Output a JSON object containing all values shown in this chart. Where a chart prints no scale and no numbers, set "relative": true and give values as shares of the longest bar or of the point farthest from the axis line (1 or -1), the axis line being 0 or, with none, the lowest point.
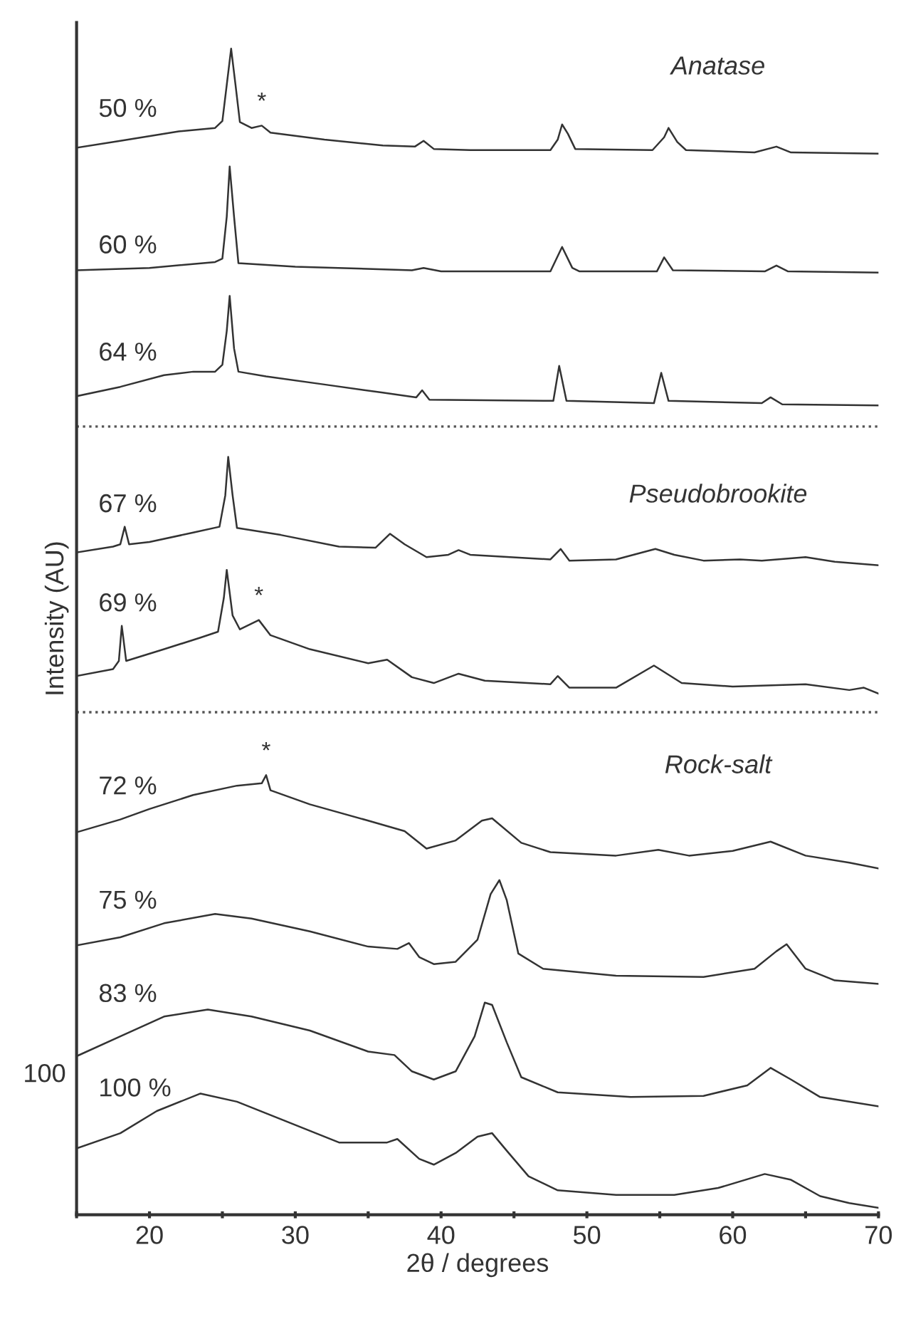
{
  "chart_data": {
    "type": "line",
    "relative": true,
    "xlabel": "2θ / degrees",
    "ylabel": "Intensity (AU)",
    "xlim": [
      15,
      70
    ],
    "xticks": [
      {
        "value": 15,
        "label": null
      },
      20,
      {
        "value": 25,
        "label": null
      },
      30,
      {
        "value": 35,
        "label": null
      },
      40,
      {
        "value": 45,
        "label": null
      },
      50,
      {
        "value": 55,
        "label": null
      },
      60,
      {
        "value": 65,
        "label": null
      },
      70
    ],
    "legend": false,
    "grid": false,
    "marker": "none",
    "line_style": "solid",
    "series": [
      {
        "name": "50 %",
        "color": "#333333",
        "x": [
          15,
          18,
          22,
          24.5,
          25.0,
          25.3,
          25.6,
          25.9,
          26.2,
          27,
          27.7,
          28.3,
          32,
          36,
          38.2,
          38.8,
          39.5,
          42,
          47.5,
          48.0,
          48.3,
          48.7,
          49.2,
          54.5,
          55.3,
          55.6,
          56.2,
          56.8,
          61.5,
          63,
          64,
          70
        ],
        "values": [
          0.915,
          0.921,
          0.929,
          0.932,
          0.938,
          0.969,
          1.0,
          0.969,
          0.937,
          0.932,
          0.934,
          0.928,
          0.922,
          0.917,
          0.916,
          0.921,
          0.914,
          0.913,
          0.913,
          0.922,
          0.935,
          0.927,
          0.914,
          0.913,
          0.924,
          0.932,
          0.92,
          0.913,
          0.911,
          0.916,
          0.911,
          0.91
        ]
      },
      {
        "name": "60 %",
        "color": "#333333",
        "x": [
          15,
          20,
          24.5,
          25.0,
          25.3,
          25.5,
          25.8,
          26.1,
          30,
          38,
          38.8,
          40,
          47.5,
          48.3,
          49,
          49.5,
          54.8,
          55.3,
          55.9,
          62.2,
          63,
          63.8,
          70
        ],
        "values": [
          0.81,
          0.812,
          0.817,
          0.82,
          0.856,
          0.899,
          0.856,
          0.816,
          0.813,
          0.81,
          0.812,
          0.809,
          0.809,
          0.83,
          0.812,
          0.809,
          0.809,
          0.821,
          0.81,
          0.809,
          0.814,
          0.809,
          0.808
        ]
      },
      {
        "name": "64 %",
        "color": "#333333",
        "x": [
          15,
          18,
          21,
          23,
          24.5,
          25.0,
          25.3,
          25.5,
          25.8,
          26.1,
          28,
          32,
          36,
          38.3,
          38.7,
          39.2,
          47.7,
          48.1,
          48.6,
          54.6,
          55.1,
          55.6,
          62,
          62.6,
          63.4,
          70
        ],
        "values": [
          0.702,
          0.71,
          0.72,
          0.723,
          0.723,
          0.729,
          0.758,
          0.788,
          0.743,
          0.723,
          0.719,
          0.712,
          0.705,
          0.701,
          0.707,
          0.699,
          0.698,
          0.728,
          0.698,
          0.696,
          0.722,
          0.698,
          0.696,
          0.701,
          0.695,
          0.694
        ]
      },
      {
        "name": "67 %",
        "color": "#333333",
        "x": [
          15,
          17.5,
          18.0,
          18.3,
          18.6,
          20,
          23,
          24.8,
          25.2,
          25.4,
          25.7,
          26.0,
          29,
          33,
          35.5,
          36.5,
          37.5,
          39,
          40.5,
          41.2,
          42,
          47.5,
          48.2,
          48.8,
          52,
          54.7,
          56,
          58,
          60.5,
          62,
          65,
          67,
          70
        ],
        "values": [
          0.568,
          0.573,
          0.575,
          0.59,
          0.575,
          0.577,
          0.585,
          0.59,
          0.617,
          0.65,
          0.617,
          0.589,
          0.583,
          0.573,
          0.572,
          0.584,
          0.575,
          0.564,
          0.566,
          0.57,
          0.566,
          0.562,
          0.571,
          0.561,
          0.562,
          0.571,
          0.566,
          0.561,
          0.562,
          0.561,
          0.564,
          0.56,
          0.557
        ]
      },
      {
        "name": "69 %",
        "color": "#333333",
        "x": [
          15,
          17.5,
          17.9,
          18.1,
          18.4,
          21,
          23.5,
          24.7,
          25.1,
          25.3,
          25.7,
          26.2,
          27.5,
          28.3,
          31,
          35,
          36.3,
          38,
          39.5,
          41.2,
          43,
          47.5,
          48,
          48.8,
          52,
          54.6,
          56.5,
          60,
          65,
          68,
          69,
          70
        ],
        "values": [
          0.462,
          0.468,
          0.475,
          0.505,
          0.475,
          0.485,
          0.495,
          0.5,
          0.529,
          0.553,
          0.514,
          0.502,
          0.51,
          0.497,
          0.485,
          0.473,
          0.476,
          0.461,
          0.456,
          0.464,
          0.458,
          0.455,
          0.462,
          0.452,
          0.452,
          0.471,
          0.456,
          0.453,
          0.455,
          0.45,
          0.452,
          0.447
        ]
      },
      {
        "name": "72 %",
        "color": "#333333",
        "x": [
          15,
          18,
          20,
          23,
          26,
          27.7,
          28,
          28.3,
          31,
          35,
          37.5,
          39,
          41,
          42.8,
          43.5,
          45.5,
          47.5,
          52,
          54.9,
          57,
          60,
          62.6,
          65,
          68,
          70
        ],
        "values": [
          0.328,
          0.339,
          0.348,
          0.36,
          0.368,
          0.37,
          0.377,
          0.364,
          0.352,
          0.338,
          0.329,
          0.314,
          0.321,
          0.338,
          0.34,
          0.319,
          0.311,
          0.308,
          0.313,
          0.308,
          0.312,
          0.32,
          0.308,
          0.302,
          0.297
        ]
      },
      {
        "name": "75 %",
        "color": "#333333",
        "x": [
          15,
          18,
          21,
          24.5,
          27,
          31,
          35,
          37,
          37.8,
          38.5,
          39.5,
          41,
          42.5,
          43.4,
          44.0,
          44.5,
          45.3,
          47,
          52,
          58,
          61.5,
          63,
          63.7,
          65,
          67,
          70
        ],
        "values": [
          0.231,
          0.238,
          0.25,
          0.258,
          0.254,
          0.243,
          0.23,
          0.228,
          0.233,
          0.221,
          0.215,
          0.217,
          0.236,
          0.275,
          0.287,
          0.27,
          0.224,
          0.211,
          0.205,
          0.204,
          0.211,
          0.226,
          0.232,
          0.211,
          0.201,
          0.198
        ]
      },
      {
        "name": "83 %",
        "color": "#333333",
        "x": [
          15,
          18,
          21,
          24,
          27,
          31,
          35,
          36.8,
          38,
          39.5,
          41,
          42.3,
          43.0,
          43.5,
          44.5,
          45.5,
          48,
          53,
          58,
          61,
          62.6,
          64,
          66,
          70
        ],
        "values": [
          0.136,
          0.153,
          0.17,
          0.176,
          0.17,
          0.158,
          0.14,
          0.137,
          0.123,
          0.116,
          0.123,
          0.153,
          0.182,
          0.18,
          0.148,
          0.118,
          0.105,
          0.101,
          0.102,
          0.111,
          0.126,
          0.116,
          0.101,
          0.093
        ]
      },
      {
        "name": "100 %",
        "color": "#333333",
        "x": [
          15,
          18,
          20.5,
          23.5,
          26,
          29,
          33,
          36.3,
          37,
          38.5,
          39.5,
          41,
          42.5,
          43.5,
          44.5,
          46,
          48,
          52,
          56,
          59,
          62.2,
          64,
          66,
          68,
          70
        ],
        "values": [
          0.057,
          0.07,
          0.089,
          0.104,
          0.097,
          0.082,
          0.062,
          0.062,
          0.065,
          0.048,
          0.043,
          0.053,
          0.067,
          0.07,
          0.055,
          0.033,
          0.021,
          0.017,
          0.017,
          0.023,
          0.035,
          0.03,
          0.016,
          0.01,
          0.006
        ]
      }
    ],
    "ref_lines": [
      {
        "axis": "y",
        "value": 0.676,
        "color": "#555555",
        "line_style": "dotted"
      },
      {
        "axis": "y",
        "value": 0.431,
        "color": "#555555",
        "line_style": "dotted"
      }
    ],
    "annotations": [
      "100",
      "Anatase",
      "Pseudobrookite",
      "Rock-salt",
      {
        "text": "*",
        "x": 27.7,
        "y": 0.934
      },
      {
        "text": "*",
        "x": 27.5,
        "y": 0.51
      },
      {
        "text": "*",
        "x": 28,
        "y": 0.377
      }
    ]
  }
}
